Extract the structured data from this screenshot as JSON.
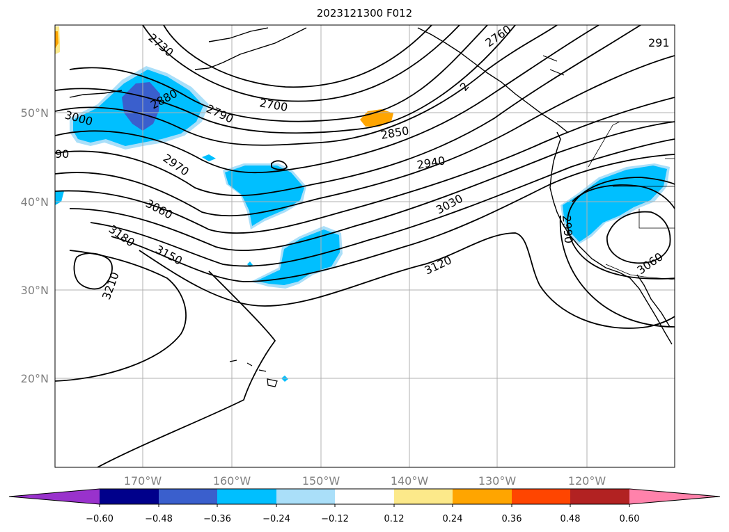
{
  "title": "2023121300 F012",
  "map": {
    "longitude_ticks": [
      "170°W",
      "160°W",
      "150°W",
      "140°W",
      "130°W",
      "120°W"
    ],
    "latitude_ticks": [
      "50°N",
      "40°N",
      "30°N",
      "20°N"
    ],
    "contour_labels": [
      "2730",
      "2760",
      "291",
      "2880",
      "2790",
      "2700",
      "3000",
      "90",
      "2850",
      "2970",
      "2940",
      "3060",
      "3030",
      "3180",
      "3150",
      "3120",
      "3210",
      "2990",
      "3060",
      "2"
    ],
    "colors": {
      "contour": "#000000",
      "grid": "#b0b0b0",
      "light_blue": "#aadff9",
      "blue": "#00bfff",
      "royal_blue": "#3a5fcd",
      "orange": "#ffa500",
      "yellow": "#fce98a"
    }
  },
  "colorbar": {
    "tick_labels": [
      "−0.60",
      "−0.48",
      "−0.36",
      "−0.24",
      "−0.12",
      "0.12",
      "0.24",
      "0.36",
      "0.48",
      "0.60"
    ],
    "bin_colors": [
      "#9932cc",
      "#00008b",
      "#3a5fcd",
      "#00bfff",
      "#aadff9",
      "#ffffff",
      "#fce98a",
      "#ffa500",
      "#ff4500",
      "#b22222",
      "#ff82ab"
    ]
  }
}
